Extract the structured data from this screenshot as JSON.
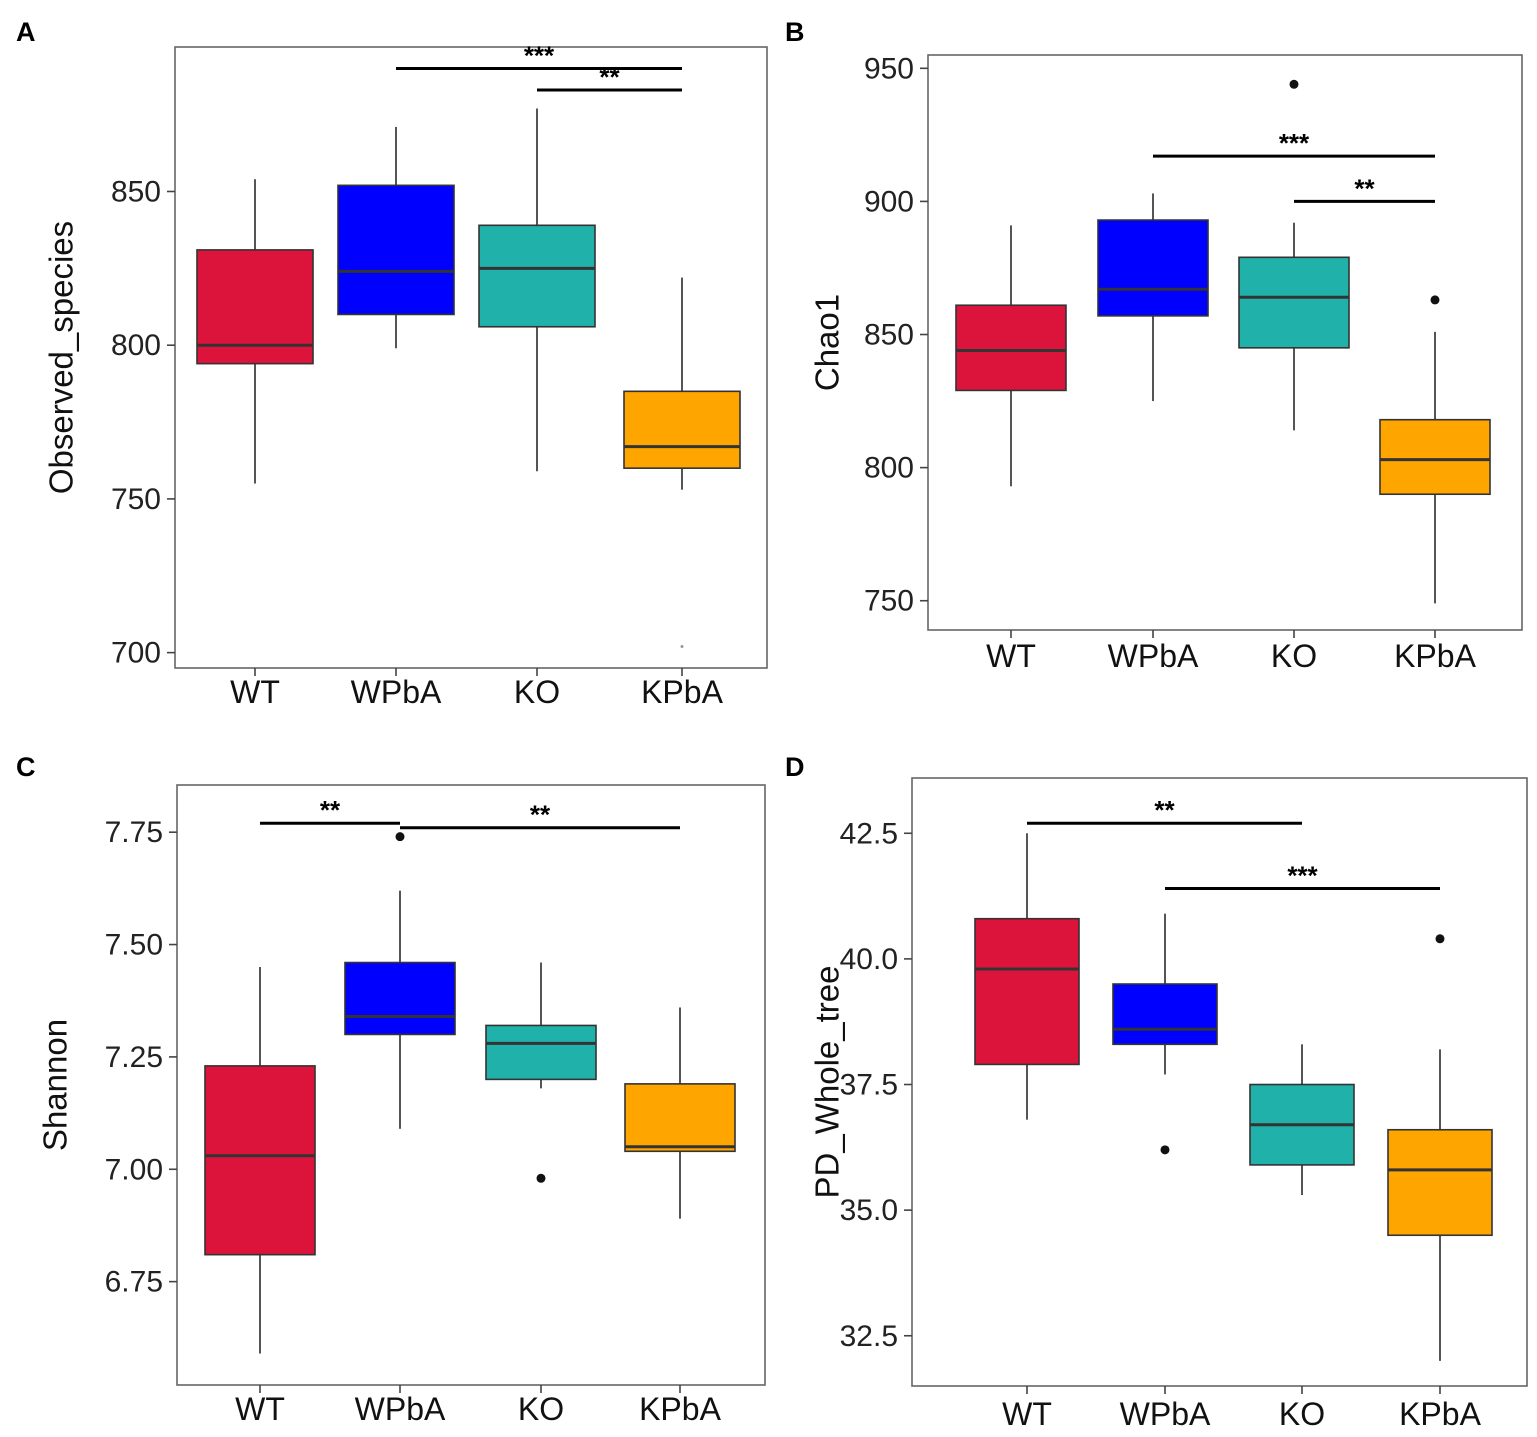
{
  "chart_data": [
    {
      "panel": "A",
      "type": "box",
      "ylabel": "Observed_species",
      "ylim": [
        695,
        897
      ],
      "yticks": [
        700,
        750,
        800,
        850
      ],
      "categories": [
        "WT",
        "WPbA",
        "KO",
        "KPbA"
      ],
      "colors": [
        "#dc143c",
        "#0000ff",
        "#20b2aa",
        "#ffa500"
      ],
      "boxes": [
        {
          "group": "WT",
          "whisker_low": 755,
          "q1": 794,
          "median": 800,
          "q3": 831,
          "whisker_high": 854,
          "outliers": []
        },
        {
          "group": "WPbA",
          "whisker_low": 799,
          "q1": 810,
          "median": 824,
          "q3": 852,
          "whisker_high": 871,
          "outliers": []
        },
        {
          "group": "KO",
          "whisker_low": 759,
          "q1": 806,
          "median": 825,
          "q3": 839,
          "whisker_high": 877,
          "outliers": []
        },
        {
          "group": "KPbA",
          "whisker_low": 753,
          "q1": 760,
          "median": 767,
          "q3": 785,
          "whisker_high": 822,
          "outliers": [
            702
          ]
        }
      ],
      "significance": [
        {
          "from": "WPbA",
          "to": "KPbA",
          "y": 890,
          "label": "***"
        },
        {
          "from": "KO",
          "to": "KPbA",
          "y": 883,
          "label": "**"
        }
      ]
    },
    {
      "panel": "B",
      "type": "box",
      "ylabel": "Chao1",
      "ylim": [
        739,
        955
      ],
      "yticks": [
        750,
        800,
        850,
        900,
        950
      ],
      "categories": [
        "WT",
        "WPbA",
        "KO",
        "KPbA"
      ],
      "colors": [
        "#dc143c",
        "#0000ff",
        "#20b2aa",
        "#ffa500"
      ],
      "boxes": [
        {
          "group": "WT",
          "whisker_low": 793,
          "q1": 829,
          "median": 844,
          "q3": 861,
          "whisker_high": 891,
          "outliers": []
        },
        {
          "group": "WPbA",
          "whisker_low": 825,
          "q1": 857,
          "median": 867,
          "q3": 893,
          "whisker_high": 903,
          "outliers": []
        },
        {
          "group": "KO",
          "whisker_low": 814,
          "q1": 845,
          "median": 864,
          "q3": 879,
          "whisker_high": 892,
          "outliers": [
            944
          ]
        },
        {
          "group": "KPbA",
          "whisker_low": 749,
          "q1": 790,
          "median": 803,
          "q3": 818,
          "whisker_high": 851,
          "outliers": [
            863
          ]
        }
      ],
      "significance": [
        {
          "from": "WPbA",
          "to": "KPbA",
          "y": 917,
          "label": "***"
        },
        {
          "from": "KO",
          "to": "KPbA",
          "y": 900,
          "label": "**"
        }
      ]
    },
    {
      "panel": "C",
      "type": "box",
      "ylabel": "Shannon",
      "ylim": [
        6.52,
        7.855
      ],
      "yticks": [
        6.75,
        7.0,
        7.25,
        7.5,
        7.75
      ],
      "tick_format": "2dp",
      "categories": [
        "WT",
        "WPbA",
        "KO",
        "KPbA"
      ],
      "colors": [
        "#dc143c",
        "#0000ff",
        "#20b2aa",
        "#ffa500"
      ],
      "boxes": [
        {
          "group": "WT",
          "whisker_low": 6.59,
          "q1": 6.81,
          "median": 7.03,
          "q3": 7.23,
          "whisker_high": 7.45,
          "outliers": []
        },
        {
          "group": "WPbA",
          "whisker_low": 7.09,
          "q1": 7.3,
          "median": 7.34,
          "q3": 7.46,
          "whisker_high": 7.62,
          "outliers": [
            7.74
          ]
        },
        {
          "group": "KO",
          "whisker_low": 7.18,
          "q1": 7.2,
          "median": 7.28,
          "q3": 7.32,
          "whisker_high": 7.46,
          "outliers": [
            6.98
          ]
        },
        {
          "group": "KPbA",
          "whisker_low": 6.89,
          "q1": 7.04,
          "median": 7.05,
          "q3": 7.19,
          "whisker_high": 7.36,
          "outliers": []
        }
      ],
      "significance": [
        {
          "from": "WT",
          "to": "WPbA",
          "y": 7.77,
          "label": "**"
        },
        {
          "from": "WPbA",
          "to": "KPbA",
          "y": 7.76,
          "label": "**"
        }
      ]
    },
    {
      "panel": "D",
      "type": "box",
      "ylabel": "PD_Whole_tree",
      "ylim": [
        31.5,
        43.6
      ],
      "yticks": [
        32.5,
        35.0,
        37.5,
        40.0,
        42.5
      ],
      "tick_format": "1dp",
      "categories": [
        "WT",
        "WPbA",
        "KO",
        "KPbA"
      ],
      "colors": [
        "#dc143c",
        "#0000ff",
        "#20b2aa",
        "#ffa500"
      ],
      "boxes": [
        {
          "group": "WT",
          "whisker_low": 36.8,
          "q1": 37.9,
          "median": 39.8,
          "q3": 40.8,
          "whisker_high": 42.5,
          "outliers": []
        },
        {
          "group": "WPbA",
          "whisker_low": 37.7,
          "q1": 38.3,
          "median": 38.6,
          "q3": 39.5,
          "whisker_high": 40.9,
          "outliers": [
            36.2
          ]
        },
        {
          "group": "KO",
          "whisker_low": 35.3,
          "q1": 35.9,
          "median": 36.7,
          "q3": 37.5,
          "whisker_high": 38.3,
          "outliers": []
        },
        {
          "group": "KPbA",
          "whisker_low": 32.0,
          "q1": 34.5,
          "median": 35.8,
          "q3": 36.6,
          "whisker_high": 38.2,
          "outliers": [
            40.4
          ]
        }
      ],
      "significance": [
        {
          "from": "WT",
          "to": "KO",
          "y": 42.7,
          "label": "**"
        },
        {
          "from": "WPbA",
          "to": "KPbA",
          "y": 41.4,
          "label": "***"
        }
      ]
    }
  ]
}
